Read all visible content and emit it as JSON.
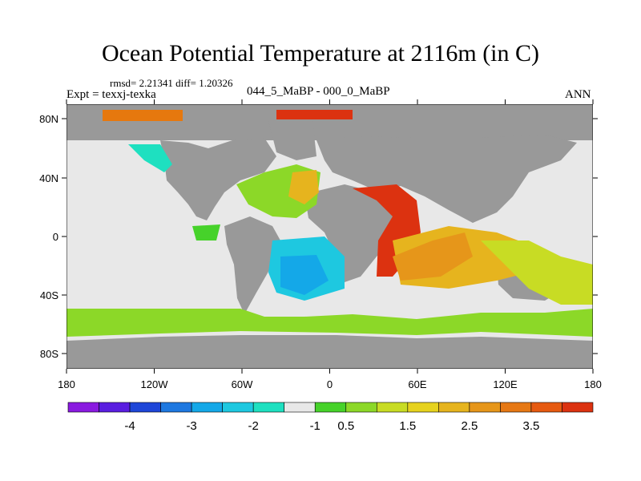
{
  "title": "Ocean Potential Temperature at 2116m (in C)",
  "stats_line": "rmsd= 2.21341 diff= 1.20326",
  "experiment_label": "Expt = texxj-texka",
  "comparison_label": "044_5_MaBP - 000_0_MaBP",
  "season_label": "ANN",
  "x_ticks": [
    "180",
    "120W",
    "60W",
    "0",
    "60E",
    "120E",
    "180"
  ],
  "y_ticks": [
    "80N",
    "40N",
    "0",
    "40S",
    "80S"
  ],
  "colorbar": {
    "colors": [
      "#8a1ae0",
      "#5a1ee0",
      "#1e46d8",
      "#1e78e0",
      "#14a8e8",
      "#1ec8e0",
      "#1ee0c0",
      "#e8e8e8",
      "#46d22a",
      "#8cd828",
      "#c8dc24",
      "#e6d21e",
      "#e6b41e",
      "#e6961a",
      "#e67814",
      "#e65a10",
      "#dc3210"
    ],
    "labels": [
      "-4",
      "-3",
      "-2",
      "-1",
      "0.5",
      "1.5",
      "2.5",
      "3.5"
    ],
    "label_positions": [
      2,
      4,
      6,
      8,
      9,
      11,
      13,
      15
    ]
  },
  "palette": {
    "land": "#999999",
    "ocean_neutral": "#e8e8e8"
  }
}
